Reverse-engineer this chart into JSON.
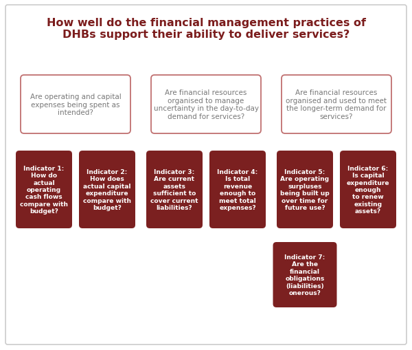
{
  "title": "How well do the financial management practices of\nDHBs support their ability to deliver services?",
  "title_color": "#7B1C1C",
  "background_color": "#FFFFFF",
  "outer_border_color": "#CCCCCC",
  "arrow_color": "#AAAAAA",
  "box_border_color": "#C07070",
  "dark_box_bg": "#7B2020",
  "dark_box_fg": "#FFFFFF",
  "light_box_bg": "#FFFFFF",
  "light_box_fg": "#777777",
  "mid_questions": [
    "Are operating and capital\nexpenses being spent as\nintended?",
    "Are financial resources\norganised to manage\nuncertainty in the day-to-day\ndemand for services?",
    "Are financial resources\norganised and used to meet\nthe longer-term demand for\nservices?"
  ],
  "ind_labels": [
    "Indicator 1:\nHow do\nactual\noperating\ncash flows\ncompare with\nbudget?",
    "Indicator 2:\nHow does\nactual capital\nexpenditure\ncompare with\nbudget?",
    "Indicator 3:\nAre current\nassets\nsufficient to\ncover current\nliabilities?",
    "Indicator 4:\nIs total\nrevenue\nenough to\nmeet total\nexpenses?",
    "Indicator 5:\nAre operating\nsurpluses\nbeing built up\nover time for\nfuture use?",
    "Indicator 6:\nIs capital\nexpenditure\nenough\nto renew\nexisting\nassets?",
    "Indicator 7:\nAre the\nfinancial\nobligations\n(liabilities)\nonerous?"
  ]
}
